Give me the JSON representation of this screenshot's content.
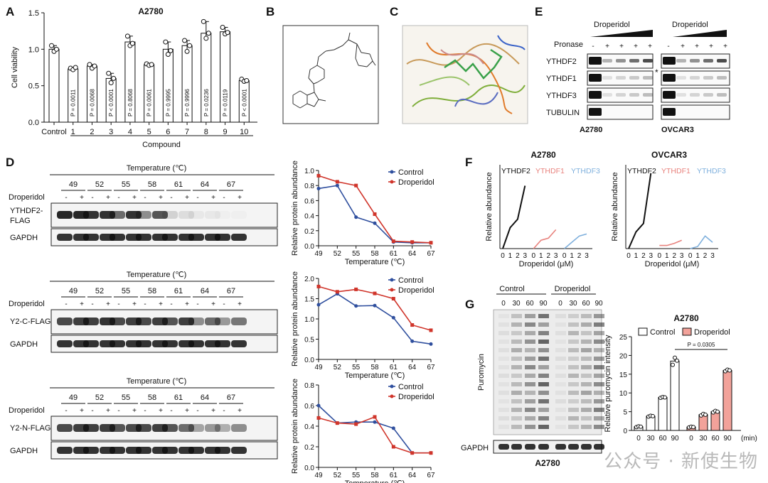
{
  "panels": {
    "A": {
      "letter": "A",
      "title": "A2780",
      "ylabel": "Cell viability",
      "xlabel": "Compound"
    },
    "B": {
      "letter": "B"
    },
    "C": {
      "letter": "C"
    },
    "D": {
      "letter": "D",
      "temp_header": "Temperature (℃)",
      "temps": [
        "49",
        "52",
        "55",
        "58",
        "61",
        "64",
        "67"
      ],
      "treat_label": "Droperidol",
      "signs": [
        "-",
        "+"
      ],
      "rows": [
        {
          "protein": [
            "YTHDF2-",
            "FLAG"
          ],
          "loading": "GAPDH"
        },
        {
          "protein": [
            "Y2-C-FLAG"
          ],
          "loading": "GAPDH"
        },
        {
          "protein": [
            "Y2-N-FLAG"
          ],
          "loading": "GAPDH"
        }
      ]
    },
    "E": {
      "letter": "E",
      "pronase": "Pronase",
      "drug": "Droperidol",
      "pronase_signs": [
        "-",
        "+",
        "+",
        "+",
        "+"
      ],
      "blots": [
        "YTHDF2",
        "YTHDF1",
        "YTHDF3",
        "TUBULIN"
      ],
      "star": "*",
      "cells": [
        "A2780",
        "OVCAR3"
      ]
    },
    "F": {
      "letter": "F"
    },
    "G": {
      "letter": "G",
      "group_labels": [
        "Control",
        "Droperidol"
      ],
      "times": [
        "0",
        "30",
        "60",
        "90"
      ],
      "blot_label": "Puromycin",
      "loading": "GAPDH",
      "cell": "A2780"
    }
  },
  "chart_data": [
    {
      "type": "bar",
      "panel": "A",
      "title": "A2780",
      "xlabel": "Compound",
      "ylabel": "Cell viability",
      "categories": [
        "Control",
        "1",
        "2",
        "3",
        "4",
        "5",
        "6",
        "7",
        "8",
        "9",
        "10"
      ],
      "values": [
        1.0,
        0.73,
        0.77,
        0.6,
        1.1,
        0.79,
        1.0,
        1.05,
        1.22,
        1.24,
        0.57
      ],
      "points": [
        [
          1.05,
          0.97,
          1.0
        ],
        [
          0.74,
          0.72,
          0.75
        ],
        [
          0.79,
          0.74,
          0.77
        ],
        [
          0.67,
          0.54,
          0.6
        ],
        [
          1.18,
          1.05,
          1.08
        ],
        [
          0.8,
          0.78,
          0.79
        ],
        [
          1.1,
          0.93,
          0.98
        ],
        [
          1.12,
          0.97,
          1.05
        ],
        [
          1.38,
          1.15,
          1.22
        ],
        [
          1.3,
          1.21,
          1.23
        ],
        [
          0.59,
          0.56,
          0.57
        ]
      ],
      "pvalues": [
        "",
        "P = 0.0011",
        "P = 0.0068",
        "P < 0.0001",
        "P = 0.8068",
        "P = 0.0061",
        "P = 0.9995",
        "P = 0.9996",
        "P = 0.0236",
        "P = 0.0119",
        "P < 0.0001"
      ],
      "yticks": [
        "0.0",
        "0.5",
        "1.0",
        "1.5"
      ],
      "ylim": [
        0,
        1.5
      ]
    },
    {
      "type": "line",
      "panel": "D1",
      "xlabel": "Temperature (℃)",
      "ylabel": "Relative protein abundance",
      "x": [
        49,
        52,
        55,
        58,
        61,
        64,
        67
      ],
      "xticks": [
        "49",
        "52",
        "55",
        "58",
        "61",
        "64",
        "67"
      ],
      "yticks": [
        "0.0",
        "0.2",
        "0.4",
        "0.6",
        "0.8",
        "1.0"
      ],
      "ylim": [
        0,
        1.0
      ],
      "legend": "top-right",
      "series": [
        {
          "name": "Control",
          "color": "#2f4f9e",
          "values": [
            0.76,
            0.8,
            0.38,
            0.3,
            0.05,
            0.04,
            0.04
          ]
        },
        {
          "name": "Droperidol",
          "color": "#d0352b",
          "values": [
            0.93,
            0.85,
            0.8,
            0.42,
            0.06,
            0.05,
            0.04
          ]
        }
      ]
    },
    {
      "type": "line",
      "panel": "D2",
      "xlabel": "Temperature (℃)",
      "ylabel": "Relative protein abundance",
      "x": [
        49,
        52,
        55,
        58,
        61,
        64,
        67
      ],
      "xticks": [
        "49",
        "52",
        "55",
        "58",
        "61",
        "64",
        "67"
      ],
      "yticks": [
        "0.0",
        "0.5",
        "1.0",
        "1.5",
        "2.0"
      ],
      "ylim": [
        0,
        2.0
      ],
      "legend": "top-right",
      "series": [
        {
          "name": "Control",
          "color": "#2f4f9e",
          "values": [
            1.35,
            1.62,
            1.32,
            1.33,
            1.03,
            0.45,
            0.38
          ]
        },
        {
          "name": "Droperidol",
          "color": "#d0352b",
          "values": [
            1.8,
            1.67,
            1.73,
            1.63,
            1.5,
            0.85,
            0.72
          ]
        }
      ]
    },
    {
      "type": "line",
      "panel": "D3",
      "xlabel": "Temperature (℃)",
      "ylabel": "Relative protein abundance",
      "x": [
        49,
        52,
        55,
        58,
        61,
        64,
        67
      ],
      "xticks": [
        "49",
        "52",
        "55",
        "58",
        "61",
        "64",
        "67"
      ],
      "yticks": [
        "0.0",
        "0.2",
        "0.4",
        "0.6",
        "0.8"
      ],
      "ylim": [
        0,
        0.8
      ],
      "legend": "top-right",
      "series": [
        {
          "name": "Control",
          "color": "#2f4f9e",
          "values": [
            0.6,
            0.43,
            0.44,
            0.44,
            0.38,
            0.14,
            0.14
          ]
        },
        {
          "name": "Droperidol",
          "color": "#d0352b",
          "values": [
            0.48,
            0.43,
            0.42,
            0.49,
            0.2,
            0.14,
            0.14
          ]
        }
      ]
    },
    {
      "type": "line",
      "panel": "F-A2780",
      "title": "A2780",
      "xlabel": "Droperidol (μM)",
      "ylabel": "Relative abundance",
      "xticks": [
        "0",
        "1",
        "2",
        "3"
      ],
      "series": [
        {
          "name": "YTHDF2",
          "color": "#111111",
          "values": [
            0.0,
            0.2,
            0.28,
            0.6
          ]
        },
        {
          "name": "YTHDF1",
          "color": "#e8827d",
          "values": [
            0.0,
            0.08,
            0.1,
            0.18
          ]
        },
        {
          "name": "YTHDF3",
          "color": "#7fb0dd",
          "values": [
            0.0,
            0.06,
            0.12,
            0.14
          ]
        }
      ]
    },
    {
      "type": "line",
      "panel": "F-OVCAR3",
      "title": "OVCAR3",
      "xlabel": "Droperidol (μM)",
      "ylabel": "Relative abundance",
      "xticks": [
        "0",
        "1",
        "2",
        "3"
      ],
      "series": [
        {
          "name": "YTHDF2",
          "color": "#111111",
          "values": [
            0.0,
            0.16,
            0.24,
            0.72
          ]
        },
        {
          "name": "YTHDF1",
          "color": "#e8827d",
          "values": [
            0.03,
            0.03,
            0.05,
            0.08
          ]
        },
        {
          "name": "YTHDF3",
          "color": "#7fb0dd",
          "values": [
            0.0,
            0.02,
            0.12,
            0.06
          ]
        }
      ]
    },
    {
      "type": "bar",
      "panel": "G",
      "title": "A2780",
      "xlabel": "(min)",
      "ylabel": "Relative puromycin intensity",
      "categories": [
        "0",
        "30",
        "60",
        "90"
      ],
      "yticks": [
        "0",
        "5",
        "10",
        "15",
        "20",
        "25"
      ],
      "ylim": [
        0,
        25
      ],
      "legend": "top-right",
      "annotation": "P = 0.0305",
      "series": [
        {
          "name": "Control",
          "color": "#ffffff",
          "values": [
            1.0,
            3.8,
            8.8,
            18.5
          ],
          "points": [
            [
              0.9,
              1.1,
              1.0
            ],
            [
              3.7,
              3.9,
              3.8
            ],
            [
              8.7,
              8.9,
              8.8
            ],
            [
              17.5,
              19.4,
              18.6
            ]
          ]
        },
        {
          "name": "Droperidol",
          "color": "#f2a29a",
          "values": [
            0.9,
            4.2,
            5.0,
            16.0
          ],
          "points": [
            [
              0.8,
              1.0,
              0.9
            ],
            [
              4.0,
              4.4,
              4.2
            ],
            [
              4.8,
              5.2,
              5.0
            ],
            [
              15.8,
              16.2,
              16.0
            ]
          ]
        }
      ]
    }
  ],
  "watermark": "公众号 · 新使生物"
}
